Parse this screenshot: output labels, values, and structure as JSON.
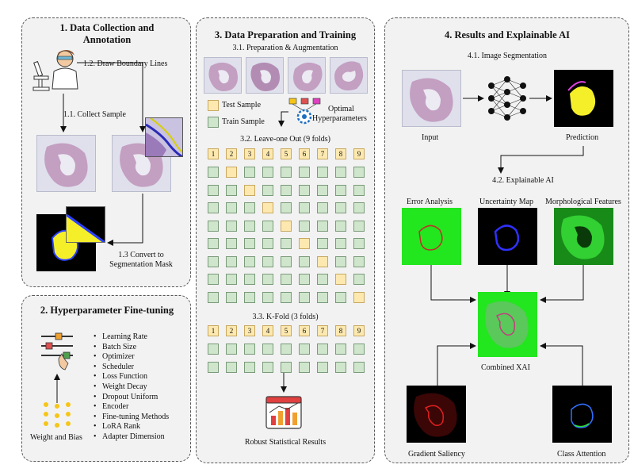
{
  "panel1": {
    "title": "1. Data Collection and Annotation",
    "draw_boundary": "1.2. Draw Boundary Lines",
    "collect_sample": "1.1. Collect Sample",
    "convert_mask_1": "1.3 Convert to",
    "convert_mask_2": "Segmentation Mask"
  },
  "panel2": {
    "title": "2. Hyperparameter Fine-tuning",
    "weight_bias": "Weight and Bias",
    "items": [
      "Learning Rate",
      "Batch Size",
      "Optimizer",
      "Scheduler",
      "Loss Function",
      "Weight Decay",
      "Dropout Uniform",
      "Encoder",
      "Fine-tuning Methods",
      "LoRA Rank",
      "Adapter Dimension"
    ]
  },
  "panel3": {
    "title": "3. Data Preparation and Training",
    "prep_aug": "3.1. Preparation & Augmentation",
    "test_sample": "Test Sample",
    "train_sample": "Train Sample",
    "optimal_hp_1": "Optimal",
    "optimal_hp_2": "Hyperparameters",
    "loo": "3.2. Leave-one Out (9 folds)",
    "kfold": "3.3. K-Fold (3 folds)",
    "robust": "Robust Statistical Results",
    "fold_numbers": [
      "1",
      "2",
      "3",
      "4",
      "5",
      "6",
      "7",
      "8",
      "9"
    ]
  },
  "panel4": {
    "title": "4. Results and Explainable AI",
    "seg": "4.1. Image Segmentation",
    "input": "Input",
    "prediction": "Prediction",
    "xai": "4.2. Explainable AI",
    "error": "Error Analysis",
    "uncertainty": "Uncertainty Map",
    "morph": "Morphological Features",
    "combined": "Combined XAI",
    "gradient": "Gradient Saliency",
    "class_attn": "Class Attention"
  },
  "colors": {
    "panel_bg": "#f2f2f2",
    "test_cell": "#fde9b0",
    "train_cell": "#cfe6cc",
    "mask_yellow": "#f5ef2a",
    "xai_green": "#22e61e"
  }
}
